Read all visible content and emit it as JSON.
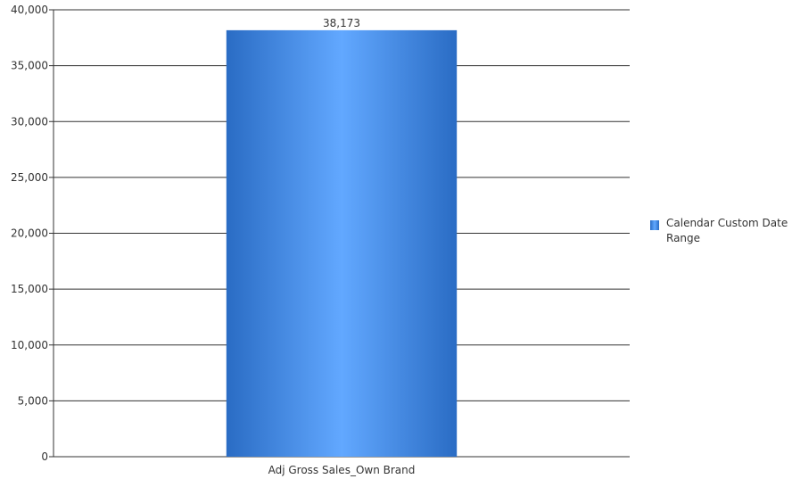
{
  "chart_data": {
    "type": "bar",
    "categories": [
      "Adj Gross Sales_Own Brand"
    ],
    "series": [
      {
        "name": "Calendar Custom Date Range",
        "values": [
          38173
        ]
      }
    ],
    "data_labels": [
      "38,173"
    ],
    "y_ticks": [
      "0",
      "5,000",
      "10,000",
      "15,000",
      "20,000",
      "25,000",
      "30,000",
      "35,000",
      "40,000"
    ],
    "ylim": [
      0,
      40000
    ],
    "grid": true,
    "legend_position": "right",
    "colors": {
      "bar_dark": "#2a6cc4",
      "bar_light": "#62a8ff",
      "grid": "#333333"
    }
  },
  "legend": {
    "label": "Calendar Custom Date Range"
  }
}
